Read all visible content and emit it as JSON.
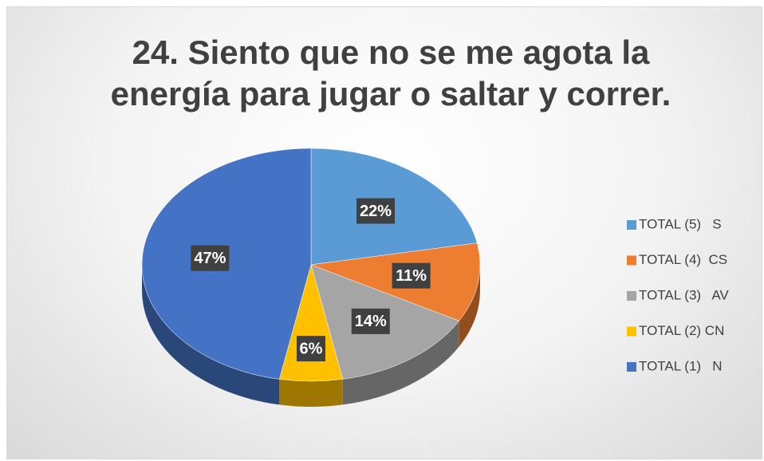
{
  "chart_data": {
    "type": "pie3d",
    "title": "24. Siento que no se me agota la energía para jugar o saltar y correr.",
    "series": [
      {
        "name": "TOTAL (5)   S",
        "color": "#5b9bd5"
      },
      {
        "name": "TOTAL (4)  CS",
        "color": "#ed7d31"
      },
      {
        "name": "TOTAL (3)   AV",
        "color": "#a5a5a5"
      },
      {
        "name": "TOTAL (2) CN",
        "color": "#ffc000"
      },
      {
        "name": "TOTAL (1)   N",
        "color": "#4472c4"
      }
    ],
    "values": [
      22,
      11,
      14,
      6,
      47
    ],
    "value_labels": [
      "22%",
      "11%",
      "14%",
      "6%",
      "47%"
    ],
    "legend": "right"
  }
}
